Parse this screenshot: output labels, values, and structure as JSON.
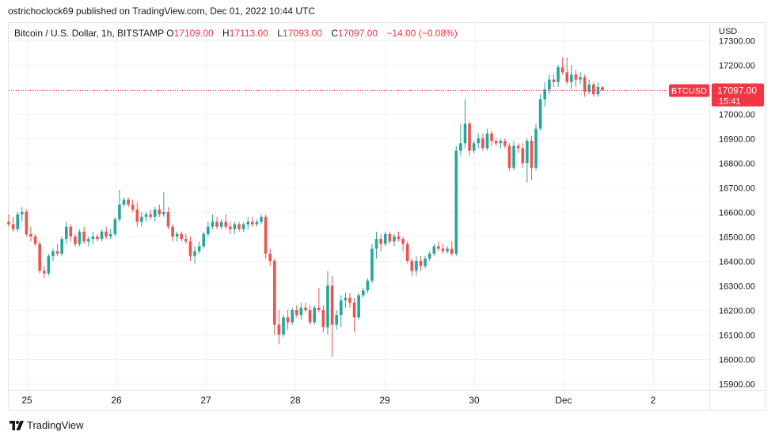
{
  "byline": "ostrichoclock69 published on TradingView.com, Dec 01, 2022 10:44 UTC",
  "legend": {
    "symbol": "Bitcoin / U.S. Dollar, 1h, BITSTAMP",
    "open_key": "O",
    "open": "17109.00",
    "high_key": "H",
    "high": "17113.00",
    "low_key": "L",
    "low": "17093.00",
    "close_key": "C",
    "close": "17097.00",
    "change": "−14.00 (−0.08%)"
  },
  "currency": "USD",
  "price_tag": {
    "symbol": "BTCUSD",
    "price": "17097.00",
    "countdown": "15:41",
    "color": "#f23645"
  },
  "footer_brand": "TradingView",
  "colors": {
    "up": "#26a69a",
    "down": "#ef5350",
    "grid": "#f0f3fa",
    "last_price_line": "#f23645"
  },
  "chart_data": {
    "type": "candlestick",
    "y_ticks": [
      15900,
      16000,
      16100,
      16200,
      16300,
      16400,
      16500,
      16600,
      16700,
      16800,
      16900,
      17000,
      17100,
      17200,
      17300
    ],
    "y_tick_labels": [
      "15900.00",
      "16000.00",
      "16100.00",
      "16200.00",
      "16300.00",
      "16400.00",
      "16500.00",
      "16600.00",
      "16700.00",
      "16800.00",
      "16900.00",
      "17000.00",
      "",
      "17200.00",
      "17300.00"
    ],
    "ylim": [
      15860,
      17340
    ],
    "x_ticks": [
      "25",
      "26",
      "27",
      "28",
      "29",
      "30",
      "Dec",
      "2"
    ],
    "last_price": 17097,
    "candles": [
      {
        "o": 16560,
        "h": 16590,
        "l": 16540,
        "c": 16550
      },
      {
        "o": 16550,
        "h": 16580,
        "l": 16520,
        "c": 16530
      },
      {
        "o": 16530,
        "h": 16600,
        "l": 16520,
        "c": 16590
      },
      {
        "o": 16590,
        "h": 16620,
        "l": 16560,
        "c": 16600
      },
      {
        "o": 16600,
        "h": 16610,
        "l": 16500,
        "c": 16510
      },
      {
        "o": 16510,
        "h": 16540,
        "l": 16480,
        "c": 16500
      },
      {
        "o": 16500,
        "h": 16510,
        "l": 16460,
        "c": 16470
      },
      {
        "o": 16470,
        "h": 16480,
        "l": 16350,
        "c": 16360
      },
      {
        "o": 16360,
        "h": 16380,
        "l": 16330,
        "c": 16350
      },
      {
        "o": 16350,
        "h": 16430,
        "l": 16340,
        "c": 16420
      },
      {
        "o": 16420,
        "h": 16450,
        "l": 16400,
        "c": 16440
      },
      {
        "o": 16440,
        "h": 16470,
        "l": 16420,
        "c": 16430
      },
      {
        "o": 16430,
        "h": 16500,
        "l": 16420,
        "c": 16490
      },
      {
        "o": 16490,
        "h": 16560,
        "l": 16470,
        "c": 16540
      },
      {
        "o": 16540,
        "h": 16550,
        "l": 16480,
        "c": 16500
      },
      {
        "o": 16500,
        "h": 16510,
        "l": 16460,
        "c": 16470
      },
      {
        "o": 16470,
        "h": 16530,
        "l": 16460,
        "c": 16520
      },
      {
        "o": 16520,
        "h": 16540,
        "l": 16470,
        "c": 16480
      },
      {
        "o": 16480,
        "h": 16500,
        "l": 16460,
        "c": 16490
      },
      {
        "o": 16490,
        "h": 16520,
        "l": 16470,
        "c": 16500
      },
      {
        "o": 16500,
        "h": 16510,
        "l": 16480,
        "c": 16490
      },
      {
        "o": 16490,
        "h": 16530,
        "l": 16480,
        "c": 16520
      },
      {
        "o": 16520,
        "h": 16540,
        "l": 16490,
        "c": 16500
      },
      {
        "o": 16500,
        "h": 16530,
        "l": 16490,
        "c": 16510
      },
      {
        "o": 16510,
        "h": 16580,
        "l": 16500,
        "c": 16570
      },
      {
        "o": 16570,
        "h": 16690,
        "l": 16560,
        "c": 16630
      },
      {
        "o": 16630,
        "h": 16660,
        "l": 16620,
        "c": 16650
      },
      {
        "o": 16650,
        "h": 16660,
        "l": 16620,
        "c": 16630
      },
      {
        "o": 16630,
        "h": 16650,
        "l": 16600,
        "c": 16610
      },
      {
        "o": 16610,
        "h": 16640,
        "l": 16540,
        "c": 16560
      },
      {
        "o": 16560,
        "h": 16600,
        "l": 16540,
        "c": 16580
      },
      {
        "o": 16580,
        "h": 16600,
        "l": 16560,
        "c": 16590
      },
      {
        "o": 16590,
        "h": 16610,
        "l": 16570,
        "c": 16580
      },
      {
        "o": 16580,
        "h": 16620,
        "l": 16560,
        "c": 16610
      },
      {
        "o": 16610,
        "h": 16630,
        "l": 16580,
        "c": 16590
      },
      {
        "o": 16590,
        "h": 16680,
        "l": 16580,
        "c": 16600
      },
      {
        "o": 16600,
        "h": 16620,
        "l": 16530,
        "c": 16540
      },
      {
        "o": 16540,
        "h": 16550,
        "l": 16480,
        "c": 16500
      },
      {
        "o": 16500,
        "h": 16520,
        "l": 16480,
        "c": 16510
      },
      {
        "o": 16510,
        "h": 16520,
        "l": 16480,
        "c": 16490
      },
      {
        "o": 16490,
        "h": 16510,
        "l": 16470,
        "c": 16480
      },
      {
        "o": 16480,
        "h": 16500,
        "l": 16400,
        "c": 16420
      },
      {
        "o": 16420,
        "h": 16460,
        "l": 16390,
        "c": 16440
      },
      {
        "o": 16440,
        "h": 16480,
        "l": 16430,
        "c": 16460
      },
      {
        "o": 16460,
        "h": 16520,
        "l": 16450,
        "c": 16510
      },
      {
        "o": 16510,
        "h": 16560,
        "l": 16500,
        "c": 16540
      },
      {
        "o": 16540,
        "h": 16590,
        "l": 16530,
        "c": 16560
      },
      {
        "o": 16560,
        "h": 16580,
        "l": 16530,
        "c": 16540
      },
      {
        "o": 16540,
        "h": 16570,
        "l": 16530,
        "c": 16560
      },
      {
        "o": 16560,
        "h": 16590,
        "l": 16530,
        "c": 16540
      },
      {
        "o": 16540,
        "h": 16560,
        "l": 16510,
        "c": 16530
      },
      {
        "o": 16530,
        "h": 16560,
        "l": 16510,
        "c": 16550
      },
      {
        "o": 16550,
        "h": 16560,
        "l": 16520,
        "c": 16530
      },
      {
        "o": 16530,
        "h": 16560,
        "l": 16520,
        "c": 16550
      },
      {
        "o": 16550,
        "h": 16580,
        "l": 16530,
        "c": 16560
      },
      {
        "o": 16560,
        "h": 16580,
        "l": 16540,
        "c": 16550
      },
      {
        "o": 16550,
        "h": 16570,
        "l": 16540,
        "c": 16560
      },
      {
        "o": 16560,
        "h": 16590,
        "l": 16550,
        "c": 16580
      },
      {
        "o": 16580,
        "h": 16590,
        "l": 16410,
        "c": 16430
      },
      {
        "o": 16430,
        "h": 16450,
        "l": 16380,
        "c": 16400
      },
      {
        "o": 16400,
        "h": 16410,
        "l": 16100,
        "c": 16140
      },
      {
        "o": 16140,
        "h": 16200,
        "l": 16060,
        "c": 16100
      },
      {
        "o": 16100,
        "h": 16180,
        "l": 16090,
        "c": 16170
      },
      {
        "o": 16170,
        "h": 16200,
        "l": 16120,
        "c": 16150
      },
      {
        "o": 16150,
        "h": 16210,
        "l": 16140,
        "c": 16200
      },
      {
        "o": 16200,
        "h": 16220,
        "l": 16170,
        "c": 16180
      },
      {
        "o": 16180,
        "h": 16230,
        "l": 16160,
        "c": 16210
      },
      {
        "o": 16210,
        "h": 16230,
        "l": 16190,
        "c": 16200
      },
      {
        "o": 16200,
        "h": 16220,
        "l": 16140,
        "c": 16150
      },
      {
        "o": 16150,
        "h": 16220,
        "l": 16140,
        "c": 16210
      },
      {
        "o": 16210,
        "h": 16290,
        "l": 16190,
        "c": 16200
      },
      {
        "o": 16200,
        "h": 16220,
        "l": 16110,
        "c": 16130
      },
      {
        "o": 16130,
        "h": 16360,
        "l": 16100,
        "c": 16300
      },
      {
        "o": 16300,
        "h": 16340,
        "l": 16010,
        "c": 16140
      },
      {
        "o": 16140,
        "h": 16200,
        "l": 16120,
        "c": 16180
      },
      {
        "o": 16180,
        "h": 16260,
        "l": 16130,
        "c": 16240
      },
      {
        "o": 16240,
        "h": 16270,
        "l": 16210,
        "c": 16250
      },
      {
        "o": 16250,
        "h": 16270,
        "l": 16210,
        "c": 16230
      },
      {
        "o": 16230,
        "h": 16250,
        "l": 16110,
        "c": 16170
      },
      {
        "o": 16170,
        "h": 16270,
        "l": 16160,
        "c": 16260
      },
      {
        "o": 16260,
        "h": 16290,
        "l": 16250,
        "c": 16280
      },
      {
        "o": 16280,
        "h": 16330,
        "l": 16270,
        "c": 16320
      },
      {
        "o": 16320,
        "h": 16470,
        "l": 16310,
        "c": 16450
      },
      {
        "o": 16450,
        "h": 16520,
        "l": 16410,
        "c": 16490
      },
      {
        "o": 16490,
        "h": 16510,
        "l": 16440,
        "c": 16470
      },
      {
        "o": 16470,
        "h": 16520,
        "l": 16460,
        "c": 16510
      },
      {
        "o": 16510,
        "h": 16520,
        "l": 16470,
        "c": 16480
      },
      {
        "o": 16480,
        "h": 16510,
        "l": 16460,
        "c": 16500
      },
      {
        "o": 16500,
        "h": 16520,
        "l": 16480,
        "c": 16490
      },
      {
        "o": 16490,
        "h": 16500,
        "l": 16440,
        "c": 16470
      },
      {
        "o": 16470,
        "h": 16480,
        "l": 16390,
        "c": 16400
      },
      {
        "o": 16400,
        "h": 16410,
        "l": 16340,
        "c": 16360
      },
      {
        "o": 16360,
        "h": 16420,
        "l": 16340,
        "c": 16400
      },
      {
        "o": 16400,
        "h": 16420,
        "l": 16360,
        "c": 16380
      },
      {
        "o": 16380,
        "h": 16420,
        "l": 16370,
        "c": 16410
      },
      {
        "o": 16410,
        "h": 16440,
        "l": 16400,
        "c": 16430
      },
      {
        "o": 16430,
        "h": 16470,
        "l": 16420,
        "c": 16460
      },
      {
        "o": 16460,
        "h": 16480,
        "l": 16440,
        "c": 16450
      },
      {
        "o": 16450,
        "h": 16470,
        "l": 16430,
        "c": 16440
      },
      {
        "o": 16440,
        "h": 16460,
        "l": 16430,
        "c": 16450
      },
      {
        "o": 16450,
        "h": 16480,
        "l": 16420,
        "c": 16430
      },
      {
        "o": 16430,
        "h": 16870,
        "l": 16420,
        "c": 16850
      },
      {
        "o": 16850,
        "h": 16960,
        "l": 16830,
        "c": 16880
      },
      {
        "o": 16880,
        "h": 17060,
        "l": 16860,
        "c": 16960
      },
      {
        "o": 16960,
        "h": 16970,
        "l": 16830,
        "c": 16850
      },
      {
        "o": 16850,
        "h": 16890,
        "l": 16840,
        "c": 16880
      },
      {
        "o": 16880,
        "h": 16920,
        "l": 16860,
        "c": 16900
      },
      {
        "o": 16900,
        "h": 16920,
        "l": 16850,
        "c": 16860
      },
      {
        "o": 16860,
        "h": 16940,
        "l": 16850,
        "c": 16920
      },
      {
        "o": 16920,
        "h": 16930,
        "l": 16870,
        "c": 16890
      },
      {
        "o": 16890,
        "h": 16900,
        "l": 16870,
        "c": 16880
      },
      {
        "o": 16880,
        "h": 16900,
        "l": 16860,
        "c": 16890
      },
      {
        "o": 16890,
        "h": 16900,
        "l": 16860,
        "c": 16870
      },
      {
        "o": 16870,
        "h": 16880,
        "l": 16770,
        "c": 16780
      },
      {
        "o": 16780,
        "h": 16890,
        "l": 16770,
        "c": 16870
      },
      {
        "o": 16870,
        "h": 16880,
        "l": 16840,
        "c": 16860
      },
      {
        "o": 16860,
        "h": 16880,
        "l": 16780,
        "c": 16800
      },
      {
        "o": 16800,
        "h": 16900,
        "l": 16720,
        "c": 16890
      },
      {
        "o": 16890,
        "h": 16910,
        "l": 16730,
        "c": 16780
      },
      {
        "o": 16780,
        "h": 16960,
        "l": 16770,
        "c": 16940
      },
      {
        "o": 16940,
        "h": 17080,
        "l": 16930,
        "c": 17060
      },
      {
        "o": 17060,
        "h": 17130,
        "l": 17030,
        "c": 17100
      },
      {
        "o": 17100,
        "h": 17160,
        "l": 17080,
        "c": 17140
      },
      {
        "o": 17140,
        "h": 17160,
        "l": 17110,
        "c": 17130
      },
      {
        "o": 17130,
        "h": 17200,
        "l": 17110,
        "c": 17190
      },
      {
        "o": 17190,
        "h": 17230,
        "l": 17160,
        "c": 17170
      },
      {
        "o": 17170,
        "h": 17230,
        "l": 17120,
        "c": 17130
      },
      {
        "o": 17130,
        "h": 17200,
        "l": 17100,
        "c": 17160
      },
      {
        "o": 17160,
        "h": 17180,
        "l": 17110,
        "c": 17140
      },
      {
        "o": 17140,
        "h": 17170,
        "l": 17120,
        "c": 17150
      },
      {
        "o": 17150,
        "h": 17160,
        "l": 17070,
        "c": 17090
      },
      {
        "o": 17090,
        "h": 17140,
        "l": 17080,
        "c": 17120
      },
      {
        "o": 17120,
        "h": 17130,
        "l": 17070,
        "c": 17080
      },
      {
        "o": 17080,
        "h": 17130,
        "l": 17070,
        "c": 17110
      },
      {
        "o": 17109,
        "h": 17113,
        "l": 17093,
        "c": 17097
      }
    ]
  }
}
